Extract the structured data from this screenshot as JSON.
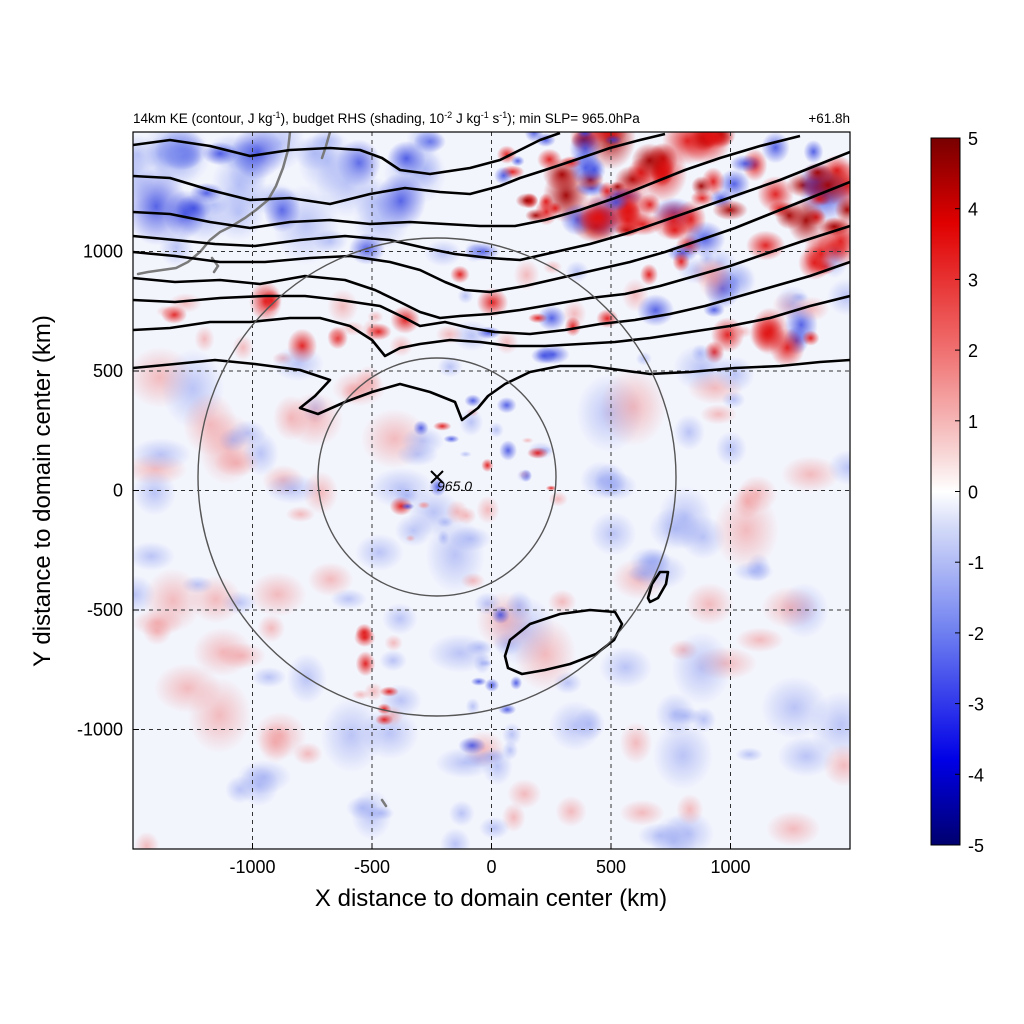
{
  "chart_data": {
    "type": "heatmap",
    "header_left": "14km KE (contour, J kg-1), budget RHS (shading, 10-2 J kg-1 s-1); min SLP= 965.0hPa",
    "header_left_parts": {
      "p1": "14km KE (contour, J kg",
      "sup1": "-1",
      "p2": "), budget RHS (shading, 10",
      "sup2": "-2",
      "p3": " J kg",
      "sup3": "-1",
      "p4": " s",
      "sup4": "-1",
      "p5": "); min SLP= 965.0hPa"
    },
    "header_right": "+61.8h",
    "xlabel": "X distance to domain center (km)",
    "ylabel": "Y distance to domain center (km)",
    "xlim": [
      -1500,
      1500
    ],
    "ylim": [
      -1500,
      1500
    ],
    "xticks": [
      -1000,
      -500,
      0,
      500,
      1000
    ],
    "yticks": [
      -1000,
      -500,
      0,
      500,
      1000
    ],
    "xtick_labels": [
      "-1000",
      "-500",
      "0",
      "500",
      "1000"
    ],
    "ytick_labels": [
      "-1000",
      "-500",
      "0",
      "500",
      "1000"
    ],
    "grid": true,
    "grid_style": "dashed",
    "colorbar": {
      "min": -5,
      "max": 5,
      "ticks": [
        "-5",
        "-4",
        "-3",
        "-2",
        "-1",
        "0",
        "1",
        "2",
        "3",
        "4",
        "5"
      ],
      "colormap": "blue-white-red",
      "colors": {
        "neg": "#00006e",
        "mid": "#ffffff",
        "pos": "#780000"
      }
    },
    "storm_center": {
      "x": -230,
      "y": 50,
      "label": "965.0",
      "marker": "x"
    },
    "range_rings_km": [
      500,
      1000
    ],
    "shading_features": [
      {
        "name": "strong positive band",
        "x": [
          300,
          1500
        ],
        "y": [
          900,
          1500
        ],
        "value": 4
      },
      {
        "name": "negative band northwest",
        "x": [
          -1500,
          -300
        ],
        "y": [
          1000,
          1300
        ],
        "value": -1.5
      },
      {
        "name": "dipole near center",
        "x": [
          -300,
          100
        ],
        "y": [
          100,
          300
        ],
        "value": 2
      },
      {
        "name": "negative streak south",
        "x": [
          -150,
          50
        ],
        "y": [
          -1000,
          -600
        ],
        "value": -2
      }
    ],
    "contour_lines": [
      {
        "name": "KE contour 1"
      },
      {
        "name": "KE contour 2"
      },
      {
        "name": "KE contour 3"
      },
      {
        "name": "KE contour 4"
      },
      {
        "name": "KE contour 5"
      },
      {
        "name": "KE contour 6"
      },
      {
        "name": "KE contour 7"
      },
      {
        "name": "KE contour south closed"
      }
    ]
  }
}
